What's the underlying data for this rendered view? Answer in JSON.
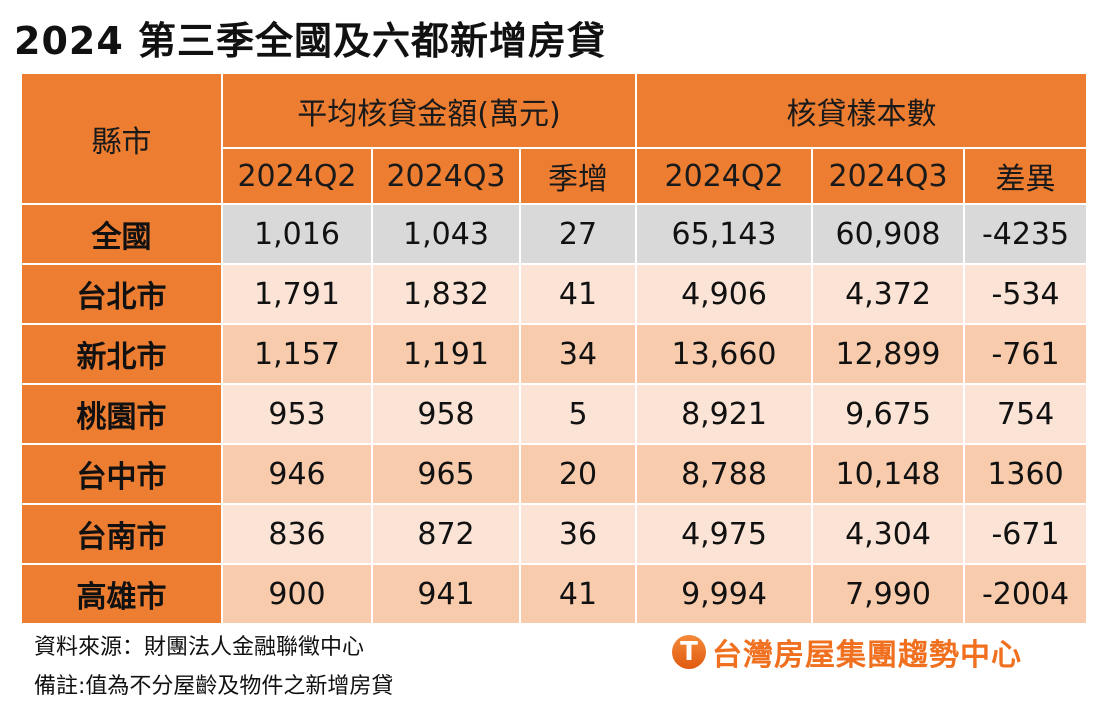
{
  "title": "2024 第三季全國及六都新增房貸",
  "chart_data": {
    "type": "table",
    "title": "2024 第三季全國及六都新增房貸",
    "row_header": "縣市",
    "groups": [
      {
        "label": "平均核貸金額(萬元)",
        "columns": [
          "2024Q2",
          "2024Q3",
          "季增"
        ]
      },
      {
        "label": "核貸樣本數",
        "columns": [
          "2024Q2",
          "2024Q3",
          "差異"
        ]
      }
    ],
    "rows": [
      {
        "county": "全國",
        "values": [
          "1,016",
          "1,043",
          "27",
          "65,143",
          "60,908",
          "-4235"
        ]
      },
      {
        "county": "台北市",
        "values": [
          "1,791",
          "1,832",
          "41",
          "4,906",
          "4,372",
          "-534"
        ]
      },
      {
        "county": "新北市",
        "values": [
          "1,157",
          "1,191",
          "34",
          "13,660",
          "12,899",
          "-761"
        ]
      },
      {
        "county": "桃園市",
        "values": [
          "953",
          "958",
          "5",
          "8,921",
          "9,675",
          "754"
        ]
      },
      {
        "county": "台中市",
        "values": [
          "946",
          "965",
          "20",
          "8,788",
          "10,148",
          "1360"
        ]
      },
      {
        "county": "台南市",
        "values": [
          "836",
          "872",
          "36",
          "4,975",
          "4,304",
          "-671"
        ]
      },
      {
        "county": "高雄市",
        "values": [
          "900",
          "941",
          "41",
          "9,994",
          "7,990",
          "-2004"
        ]
      }
    ]
  },
  "footer": {
    "source": "資料來源：財團法人金融聯徵中心",
    "note": "備註:值為不分屋齡及物件之新增房貸",
    "logo_text": "台灣房屋集團趨勢中心",
    "logo_mark": "T"
  },
  "colors": {
    "header": "#ed7d31",
    "national_row": "#d9d9d9",
    "row_light": "#fbe4d5",
    "row_dark": "#f8cbad"
  }
}
